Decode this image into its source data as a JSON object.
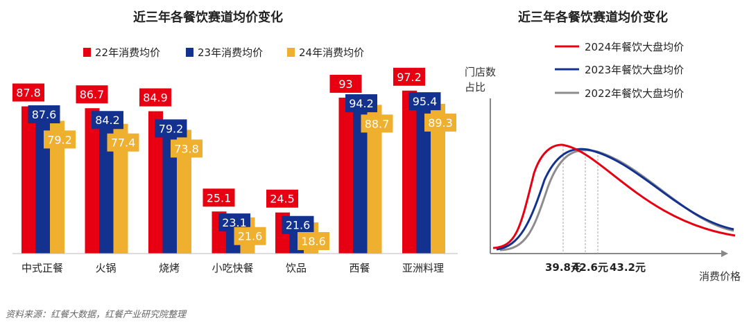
{
  "chart_data": [
    {
      "type": "bar",
      "title": "近三年各餐饮赛道均价变化",
      "categories": [
        "中式正餐",
        "火锅",
        "烧烤",
        "小吃快餐",
        "饮品",
        "西餐",
        "亚洲料理"
      ],
      "series": [
        {
          "name": "22年消费均价",
          "color": "#e60012",
          "values": [
            87.8,
            86.7,
            84.9,
            25.1,
            24.5,
            93,
            97.2
          ]
        },
        {
          "name": "23年消费均价",
          "color": "#13318f",
          "values": [
            87.6,
            84.2,
            79.2,
            23.1,
            21.6,
            94.2,
            95.4
          ]
        },
        {
          "name": "24年消费均价",
          "color": "#efaf2f",
          "values": [
            79.2,
            77.4,
            73.8,
            21.6,
            18.6,
            88.7,
            89.3
          ]
        }
      ],
      "ylim": [
        0,
        100
      ],
      "legend": "top"
    },
    {
      "type": "line",
      "title": "近三年各餐饮赛道均价变化",
      "ylabel": "门店数占比",
      "xlabel": "消费价格",
      "series": [
        {
          "name": "2024年餐饮大盘均价",
          "color": "#e60012",
          "peak_label": "39.8元",
          "peak": 39.8
        },
        {
          "name": "2023年餐饮大盘均价",
          "color": "#13318f",
          "peak_label": "42.6元",
          "peak": 42.6
        },
        {
          "name": "2022年餐饮大盘均价",
          "color": "#8c8c8c",
          "peak_label": "43.2元",
          "peak": 43.2
        }
      ],
      "legend": "top-right"
    }
  ],
  "source": "资料来源：红餐大数据，红餐产业研究院整理"
}
